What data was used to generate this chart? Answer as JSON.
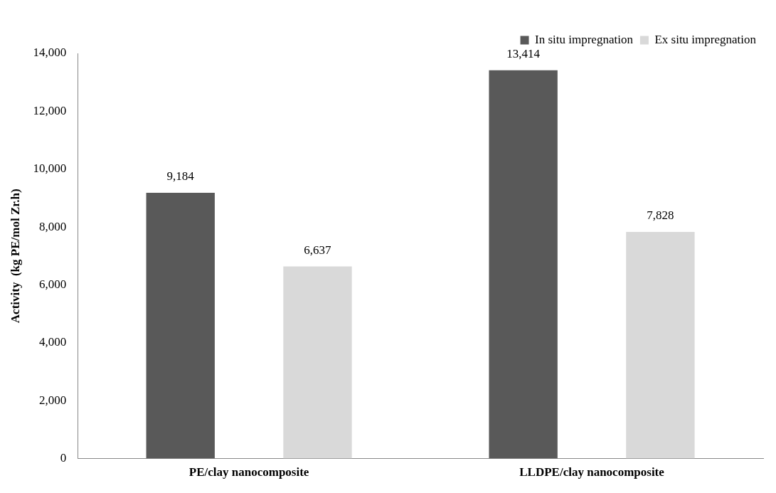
{
  "chart_data": {
    "type": "bar",
    "ylabel": "Activity  (kg PE/mol Zr.h)",
    "categories": [
      "PE/clay nanocomposite",
      "LLDPE/clay nanocomposite"
    ],
    "series": [
      {
        "name": "In situ impregnation",
        "color": "#595959",
        "values": [
          9184,
          13414
        ],
        "value_labels": [
          "9,184",
          "13,414"
        ]
      },
      {
        "name": "Ex situ impregnation",
        "color": "#d9d9d9",
        "values": [
          6637,
          7828
        ],
        "value_labels": [
          "6,637",
          "7,828"
        ]
      }
    ],
    "ylim": [
      0,
      14000
    ],
    "yticks": [
      {
        "value": 0,
        "label": "0"
      },
      {
        "value": 2000,
        "label": "2,000"
      },
      {
        "value": 4000,
        "label": "4,000"
      },
      {
        "value": 6000,
        "label": "6,000"
      },
      {
        "value": 8000,
        "label": "8,000"
      },
      {
        "value": 10000,
        "label": "10,000"
      },
      {
        "value": 12000,
        "label": "12,000"
      },
      {
        "value": 14000,
        "label": "14,000"
      }
    ],
    "grid": false,
    "legend": "top right"
  }
}
